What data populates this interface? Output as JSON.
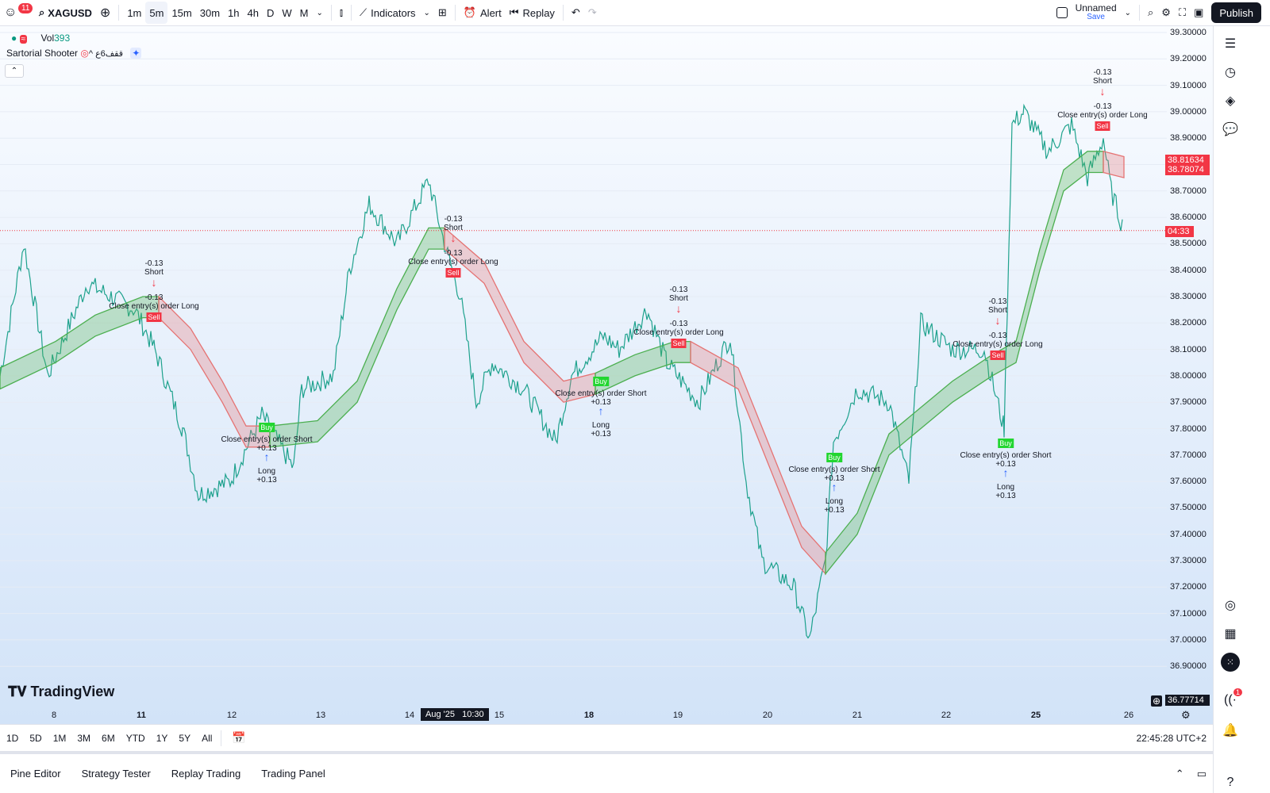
{
  "topbar": {
    "notification_count": "11",
    "symbol": "XAGUSD",
    "intervals": [
      "1m",
      "5m",
      "15m",
      "30m",
      "1h",
      "4h",
      "D",
      "W",
      "M"
    ],
    "active_interval": "5m",
    "indicators_label": "Indicators",
    "alert_label": "Alert",
    "replay_label": "Replay",
    "layout_name": "Unnamed",
    "save_label": "Save",
    "publish_label": "Publish"
  },
  "legend": {
    "vol_label": "Vol",
    "vol_value": "393",
    "strategy_name": "Sartorial Shooter",
    "strategy_suffix": "^ ققف6ع"
  },
  "price_axis": {
    "ticks": [
      "39.30000",
      "39.20000",
      "39.10000",
      "39.00000",
      "38.90000",
      "38.80000",
      "38.70000",
      "38.60000",
      "38.50000",
      "38.40000",
      "38.30000",
      "38.20000",
      "38.10000",
      "38.00000",
      "37.90000",
      "37.80000",
      "37.70000",
      "37.60000",
      "37.50000",
      "37.40000",
      "37.30000",
      "37.20000",
      "37.10000",
      "37.00000",
      "36.90000"
    ],
    "tag_upper": "38.81634",
    "tag_lower": "38.78074",
    "countdown": "04:33",
    "crosshair_price": "36.77714"
  },
  "time_axis": {
    "ticks": [
      {
        "label": "8",
        "bold": false
      },
      {
        "label": "11",
        "bold": true
      },
      {
        "label": "12",
        "bold": false
      },
      {
        "label": "13",
        "bold": false
      },
      {
        "label": "14",
        "bold": false
      },
      {
        "label": "15",
        "bold": false
      },
      {
        "label": "18",
        "bold": true
      },
      {
        "label": "19",
        "bold": false
      },
      {
        "label": "20",
        "bold": false
      },
      {
        "label": "21",
        "bold": false
      },
      {
        "label": "22",
        "bold": false
      },
      {
        "label": "25",
        "bold": true
      },
      {
        "label": "26",
        "bold": false
      }
    ],
    "crosshair_time": "Aug '25   10:30"
  },
  "trade_labels": {
    "short_qty": "-0.13",
    "short": "Short",
    "long_qty": "+0.13",
    "long": "Long",
    "close_long": "Close entry(s) order Long",
    "close_short": "Close entry(s) order Short",
    "sell": "Sell",
    "buy": "Buy"
  },
  "watermark": "TradingView",
  "range_buttons": [
    "1D",
    "5D",
    "1M",
    "3M",
    "6M",
    "YTD",
    "1Y",
    "5Y",
    "All"
  ],
  "clock": "22:45:28 UTC+2",
  "bottom_tabs": [
    "Pine Editor",
    "Strategy Tester",
    "Replay Trading",
    "Trading Panel"
  ],
  "right_toolbar_badge": "1",
  "colors": {
    "bull": "#089981",
    "bear": "#f23645",
    "cloud_green": "#4caf50",
    "cloud_red": "#e57373"
  }
}
